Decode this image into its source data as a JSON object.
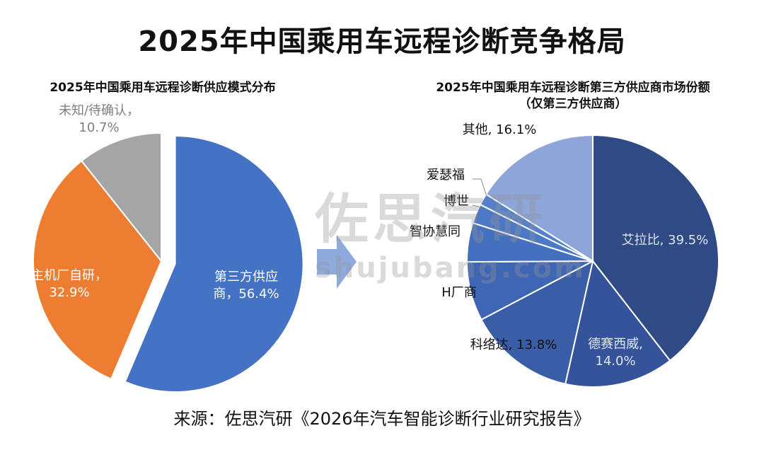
{
  "title": "2025年中国乘用车远程诊断竞争格局",
  "source": "来源：佐思汽研《2026年汽车智能诊断行业研究报告》",
  "watermark": {
    "main": "佐思汽研",
    "sub": "shujubang.com"
  },
  "chart_data": [
    {
      "type": "pie",
      "title": "2025年中国乘用车远程诊断供应模式分布",
      "slices": [
        {
          "name": "第三方供应商",
          "value": 56.4,
          "label_lines": [
            "第三方供应",
            "商，56.4%"
          ],
          "color": "#4472C4",
          "label_color": "#ffffff",
          "exploded": true
        },
        {
          "name": "主机厂自研",
          "value": 32.9,
          "label_lines": [
            "主机厂自研，",
            "32.9%"
          ],
          "color": "#ED7D31",
          "label_color": "#ffffff"
        },
        {
          "name": "未知/待确认",
          "value": 10.7,
          "label_lines": [
            "未知/待确认，",
            "10.7%"
          ],
          "color": "#A5A5A5",
          "label_color": "#7f7f7f"
        }
      ]
    },
    {
      "type": "pie",
      "title": "2025年中国乘用车远程诊断第三方供应商市场份额",
      "subtitle": "（仅第三方供应商）",
      "slices": [
        {
          "name": "艾拉比",
          "value": 39.5,
          "label_lines": [
            "艾拉比, 39.5%"
          ],
          "color": "#2F4A84",
          "label_color": "#dfe6f3"
        },
        {
          "name": "德赛西威",
          "value": 14.0,
          "label_lines": [
            "德赛西威,",
            "14.0%"
          ],
          "color": "#34539A",
          "label_color": "#dfe6f3"
        },
        {
          "name": "科络达",
          "value": 13.8,
          "label_lines": [
            "科络达, 13.8%"
          ],
          "color": "#3A5DA8",
          "label_color": "#111111"
        },
        {
          "name": "H厂商",
          "value": 7.6,
          "label_lines": [
            "H厂商"
          ],
          "color": "#3F66B5",
          "label_color": "#111111"
        },
        {
          "name": "智协慧同",
          "value": 5.0,
          "label_lines": [
            "智协慧同"
          ],
          "color": "#4570BF",
          "label_color": "#111111"
        },
        {
          "name": "博世",
          "value": 2.5,
          "label_lines": [
            "博世"
          ],
          "color": "#4C78C5",
          "label_color": "#111111"
        },
        {
          "name": "爱瑟福",
          "value": 1.5,
          "label_lines": [
            "爱瑟福"
          ],
          "color": "#5580CA",
          "label_color": "#111111"
        },
        {
          "name": "其他",
          "value": 16.1,
          "label_lines": [
            "其他, 16.1%"
          ],
          "color": "#8DA5D9",
          "label_color": "#111111"
        }
      ]
    }
  ]
}
